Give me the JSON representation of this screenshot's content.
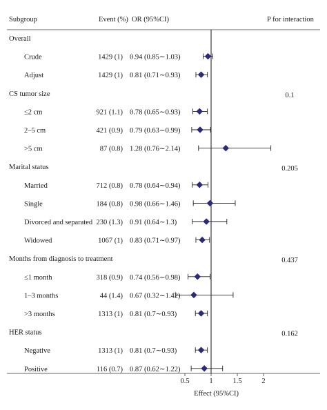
{
  "chart_data": {
    "type": "forest",
    "headers": {
      "subgroup": "Subgroup",
      "event": "Event (%)",
      "or": "OR (95%CI)",
      "p": "P for interaction"
    },
    "xlabel": "Effect (95%CI)",
    "xticks": [
      "0.5",
      "1",
      "1.5",
      "2"
    ],
    "xlim": [
      0.3,
      2.3
    ],
    "reference_line": 1,
    "marker_color": "#2b2a7a",
    "rows": [
      {
        "type": "group",
        "label": "Overall",
        "p": ""
      },
      {
        "type": "item",
        "label": "Crude",
        "event": "1429 (1)",
        "or_text": "0.94 (0.85∼1.03)",
        "or": 0.94,
        "lo": 0.85,
        "hi": 1.03
      },
      {
        "type": "item",
        "label": "Adjust",
        "event": "1429 (1)",
        "or_text": "0.81 (0.71∼0.93)",
        "or": 0.81,
        "lo": 0.71,
        "hi": 0.93
      },
      {
        "type": "group",
        "label": "CS tumor size",
        "p": "0.1"
      },
      {
        "type": "item",
        "label": "≤2 cm",
        "event": "921 (1.1)",
        "or_text": "0.78 (0.65∼0.93)",
        "or": 0.78,
        "lo": 0.65,
        "hi": 0.93
      },
      {
        "type": "item",
        "label": "2–5 cm",
        "event": "421 (0.9)",
        "or_text": "0.79 (0.63∼0.99)",
        "or": 0.79,
        "lo": 0.63,
        "hi": 0.99
      },
      {
        "type": "item",
        "label": ">5 cm",
        "event": "87 (0.8)",
        "or_text": "1.28 (0.76∼2.14)",
        "or": 1.28,
        "lo": 0.76,
        "hi": 2.14
      },
      {
        "type": "group",
        "label": "Marital status",
        "p": "0.205"
      },
      {
        "type": "item",
        "label": "Married",
        "event": "712 (0.8)",
        "or_text": "0.78 (0.64∼0.94)",
        "or": 0.78,
        "lo": 0.64,
        "hi": 0.94
      },
      {
        "type": "item",
        "label": "Single",
        "event": "184 (0.8)",
        "or_text": "0.98 (0.66∼1.46)",
        "or": 0.98,
        "lo": 0.66,
        "hi": 1.46
      },
      {
        "type": "item",
        "label": "Divorced and separated",
        "event": "230 (1.3)",
        "or_text": "0.91 (0.64∼1.3)",
        "or": 0.91,
        "lo": 0.64,
        "hi": 1.3
      },
      {
        "type": "item",
        "label": "Widowed",
        "event": "1067 (1)",
        "or_text": "0.83 (0.71∼0.97)",
        "or": 0.83,
        "lo": 0.71,
        "hi": 0.97
      },
      {
        "type": "group",
        "label": "Months from diagnosis to treatment",
        "p": "0.437"
      },
      {
        "type": "item",
        "label": "≤1 month",
        "event": "318 (0.9)",
        "or_text": "0.74 (0.56∼0.98)",
        "or": 0.74,
        "lo": 0.56,
        "hi": 0.98
      },
      {
        "type": "item",
        "label": "1–3 months",
        "event": "44 (1.4)",
        "or_text": "0.67 (0.32∼1.42)",
        "or": 0.67,
        "lo": 0.32,
        "hi": 1.42
      },
      {
        "type": "item",
        "label": ">3 months",
        "event": "1313 (1)",
        "or_text": "0.81 (0.7∼0.93)",
        "or": 0.81,
        "lo": 0.7,
        "hi": 0.93
      },
      {
        "type": "group",
        "label": "HER status",
        "p": "0.162"
      },
      {
        "type": "item",
        "label": "Negative",
        "event": "1313 (1)",
        "or_text": "0.81 (0.7∼0.93)",
        "or": 0.81,
        "lo": 0.7,
        "hi": 0.93
      },
      {
        "type": "item",
        "label": "Positive",
        "event": "116 (0.7)",
        "or_text": "0.87 (0.62∼1.22)",
        "or": 0.87,
        "lo": 0.62,
        "hi": 1.22
      }
    ]
  }
}
